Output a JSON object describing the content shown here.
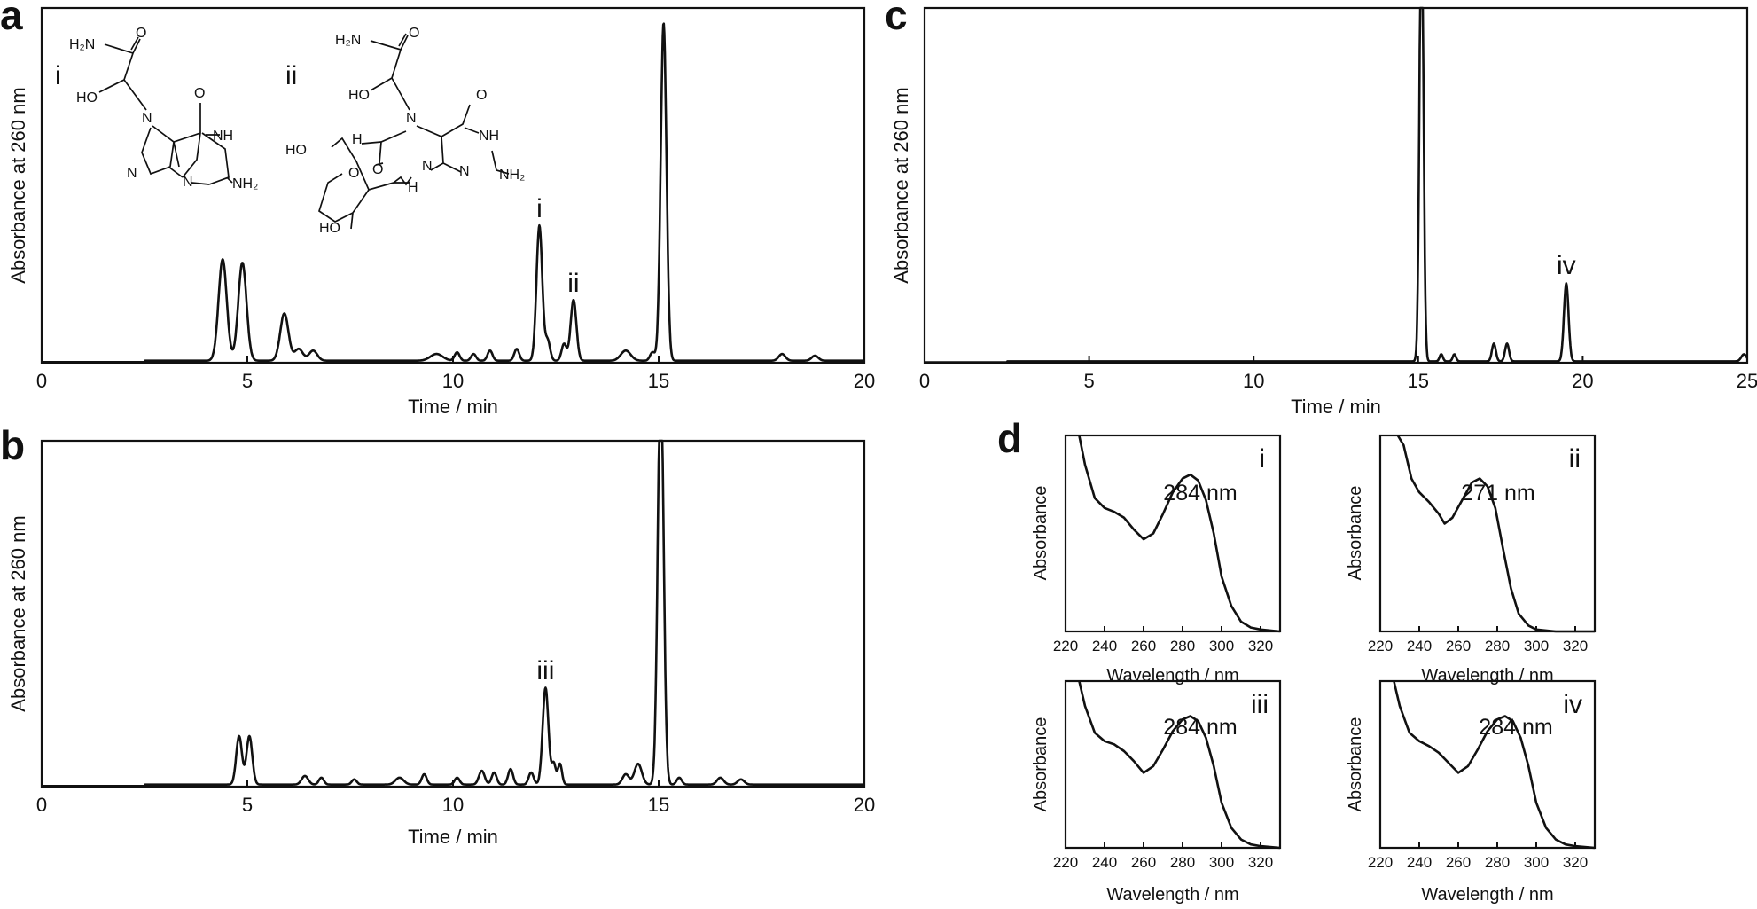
{
  "chart_data": [
    {
      "id": "a",
      "panel_label": "a",
      "type": "line",
      "xlabel": "Time / min",
      "ylabel": "Absorbance at 260 nm",
      "xlim": [
        0,
        20
      ],
      "ylim": [
        0,
        1.05
      ],
      "xticks": [
        0,
        5,
        10,
        15,
        20
      ],
      "baseline": 0.006,
      "structure_labels": [
        "i",
        "ii"
      ],
      "peaks": [
        {
          "x": 4.4,
          "h": 0.3,
          "w": 0.1
        },
        {
          "x": 4.88,
          "h": 0.29,
          "w": 0.1
        },
        {
          "x": 5.9,
          "h": 0.14,
          "w": 0.1
        },
        {
          "x": 6.25,
          "h": 0.035,
          "w": 0.1
        },
        {
          "x": 6.6,
          "h": 0.03,
          "w": 0.1
        },
        {
          "x": 9.6,
          "h": 0.02,
          "w": 0.15
        },
        {
          "x": 10.1,
          "h": 0.025,
          "w": 0.06
        },
        {
          "x": 10.5,
          "h": 0.02,
          "w": 0.06
        },
        {
          "x": 10.9,
          "h": 0.03,
          "w": 0.06
        },
        {
          "x": 11.55,
          "h": 0.035,
          "w": 0.06
        },
        {
          "x": 12.1,
          "h": 0.4,
          "w": 0.07
        },
        {
          "x": 12.3,
          "h": 0.06,
          "w": 0.06
        },
        {
          "x": 12.7,
          "h": 0.05,
          "w": 0.06
        },
        {
          "x": 12.93,
          "h": 0.18,
          "w": 0.07
        },
        {
          "x": 14.2,
          "h": 0.03,
          "w": 0.12
        },
        {
          "x": 14.85,
          "h": 0.025,
          "w": 0.06
        },
        {
          "x": 15.12,
          "h": 1.0,
          "w": 0.07
        },
        {
          "x": 18.0,
          "h": 0.02,
          "w": 0.08
        },
        {
          "x": 18.8,
          "h": 0.015,
          "w": 0.08
        }
      ],
      "annotations": [
        {
          "text": "i",
          "x": 12.1,
          "y": 0.43
        },
        {
          "text": "ii",
          "x": 12.93,
          "y": 0.21
        }
      ]
    },
    {
      "id": "b",
      "panel_label": "b",
      "type": "line",
      "xlabel": "Time / min",
      "ylabel": "Absorbance at 260 nm",
      "xlim": [
        0,
        20
      ],
      "ylim": [
        0,
        1.0
      ],
      "xticks": [
        0,
        5,
        10,
        15,
        20
      ],
      "baseline": 0.006,
      "peaks": [
        {
          "x": 4.8,
          "h": 0.14,
          "w": 0.07
        },
        {
          "x": 5.05,
          "h": 0.14,
          "w": 0.07
        },
        {
          "x": 6.4,
          "h": 0.025,
          "w": 0.08
        },
        {
          "x": 6.8,
          "h": 0.02,
          "w": 0.06
        },
        {
          "x": 7.6,
          "h": 0.015,
          "w": 0.06
        },
        {
          "x": 8.7,
          "h": 0.02,
          "w": 0.1
        },
        {
          "x": 9.3,
          "h": 0.03,
          "w": 0.06
        },
        {
          "x": 10.1,
          "h": 0.02,
          "w": 0.06
        },
        {
          "x": 10.7,
          "h": 0.04,
          "w": 0.07
        },
        {
          "x": 11.0,
          "h": 0.035,
          "w": 0.06
        },
        {
          "x": 11.4,
          "h": 0.045,
          "w": 0.06
        },
        {
          "x": 11.9,
          "h": 0.035,
          "w": 0.06
        },
        {
          "x": 12.25,
          "h": 0.28,
          "w": 0.07
        },
        {
          "x": 12.45,
          "h": 0.06,
          "w": 0.05
        },
        {
          "x": 12.6,
          "h": 0.06,
          "w": 0.05
        },
        {
          "x": 14.2,
          "h": 0.03,
          "w": 0.08
        },
        {
          "x": 14.5,
          "h": 0.06,
          "w": 0.09
        },
        {
          "x": 15.05,
          "h": 1.2,
          "w": 0.07
        },
        {
          "x": 15.5,
          "h": 0.02,
          "w": 0.06
        },
        {
          "x": 16.5,
          "h": 0.02,
          "w": 0.08
        },
        {
          "x": 17.0,
          "h": 0.015,
          "w": 0.08
        }
      ],
      "annotations": [
        {
          "text": "iii",
          "x": 12.25,
          "y": 0.31
        }
      ]
    },
    {
      "id": "c",
      "panel_label": "c",
      "type": "line",
      "xlabel": "Time / min",
      "ylabel": "Absorbance at 260 nm",
      "xlim": [
        0,
        25
      ],
      "ylim": [
        0,
        1.0
      ],
      "xticks": [
        0,
        5,
        10,
        15,
        20,
        25
      ],
      "baseline": 0.004,
      "peaks": [
        {
          "x": 15.1,
          "h": 1.3,
          "w": 0.06
        },
        {
          "x": 15.7,
          "h": 0.02,
          "w": 0.05
        },
        {
          "x": 16.1,
          "h": 0.02,
          "w": 0.05
        },
        {
          "x": 17.3,
          "h": 0.05,
          "w": 0.06
        },
        {
          "x": 17.7,
          "h": 0.05,
          "w": 0.06
        },
        {
          "x": 19.5,
          "h": 0.22,
          "w": 0.07
        },
        {
          "x": 24.9,
          "h": 0.02,
          "w": 0.08
        }
      ],
      "annotations": [
        {
          "text": "iv",
          "x": 19.5,
          "y": 0.25
        }
      ]
    },
    {
      "id": "d-i",
      "panel_label": "d",
      "type": "line",
      "xlabel": "Wavelength / nm",
      "ylabel": "Absorbance",
      "xlim": [
        220,
        330
      ],
      "xticks": [
        220,
        240,
        260,
        280,
        300,
        320
      ],
      "ylim": [
        0,
        1.0
      ],
      "spectrum_id": "i",
      "peak_label": "284 nm",
      "curve": [
        [
          227,
          1.2
        ],
        [
          230,
          0.85
        ],
        [
          235,
          0.68
        ],
        [
          240,
          0.63
        ],
        [
          245,
          0.61
        ],
        [
          250,
          0.58
        ],
        [
          255,
          0.52
        ],
        [
          260,
          0.47
        ],
        [
          265,
          0.5
        ],
        [
          270,
          0.6
        ],
        [
          275,
          0.71
        ],
        [
          280,
          0.78
        ],
        [
          284,
          0.8
        ],
        [
          288,
          0.77
        ],
        [
          292,
          0.67
        ],
        [
          296,
          0.5
        ],
        [
          300,
          0.28
        ],
        [
          305,
          0.13
        ],
        [
          310,
          0.05
        ],
        [
          315,
          0.02
        ],
        [
          320,
          0.01
        ],
        [
          330,
          0.0
        ]
      ]
    },
    {
      "id": "d-ii",
      "panel_label": "",
      "type": "line",
      "xlabel": "Wavelength / nm",
      "ylabel": "Absorbance",
      "xlim": [
        220,
        330
      ],
      "xticks": [
        220,
        240,
        260,
        280,
        300,
        320
      ],
      "ylim": [
        0,
        1.0
      ],
      "spectrum_id": "ii",
      "peak_label": "271 nm",
      "curve": [
        [
          229,
          1.2
        ],
        [
          232,
          0.95
        ],
        [
          236,
          0.78
        ],
        [
          240,
          0.71
        ],
        [
          245,
          0.66
        ],
        [
          250,
          0.6
        ],
        [
          253,
          0.55
        ],
        [
          257,
          0.58
        ],
        [
          262,
          0.67
        ],
        [
          267,
          0.76
        ],
        [
          271,
          0.78
        ],
        [
          275,
          0.74
        ],
        [
          279,
          0.63
        ],
        [
          283,
          0.42
        ],
        [
          287,
          0.22
        ],
        [
          291,
          0.09
        ],
        [
          296,
          0.03
        ],
        [
          300,
          0.01
        ],
        [
          310,
          0.0
        ],
        [
          330,
          0.0
        ]
      ]
    },
    {
      "id": "d-iii",
      "panel_label": "",
      "type": "line",
      "xlabel": "Wavelength / nm",
      "ylabel": "Absorbance",
      "xlim": [
        220,
        330
      ],
      "xticks": [
        220,
        240,
        260,
        280,
        300,
        320
      ],
      "ylim": [
        0,
        1.0
      ],
      "spectrum_id": "iii",
      "peak_label": "284 nm",
      "curve": [
        [
          227,
          1.2
        ],
        [
          230,
          0.85
        ],
        [
          235,
          0.69
        ],
        [
          240,
          0.64
        ],
        [
          245,
          0.62
        ],
        [
          250,
          0.58
        ],
        [
          255,
          0.52
        ],
        [
          260,
          0.45
        ],
        [
          265,
          0.49
        ],
        [
          270,
          0.59
        ],
        [
          275,
          0.7
        ],
        [
          280,
          0.77
        ],
        [
          284,
          0.79
        ],
        [
          288,
          0.76
        ],
        [
          292,
          0.66
        ],
        [
          296,
          0.49
        ],
        [
          300,
          0.27
        ],
        [
          305,
          0.12
        ],
        [
          310,
          0.05
        ],
        [
          315,
          0.02
        ],
        [
          320,
          0.01
        ],
        [
          330,
          0.0
        ]
      ]
    },
    {
      "id": "d-iv",
      "panel_label": "",
      "type": "line",
      "xlabel": "Wavelength / nm",
      "ylabel": "Absorbance",
      "xlim": [
        220,
        330
      ],
      "xticks": [
        220,
        240,
        260,
        280,
        300,
        320
      ],
      "ylim": [
        0,
        1.0
      ],
      "spectrum_id": "iv",
      "peak_label": "284 nm",
      "curve": [
        [
          227,
          1.2
        ],
        [
          230,
          0.85
        ],
        [
          235,
          0.69
        ],
        [
          240,
          0.64
        ],
        [
          245,
          0.61
        ],
        [
          250,
          0.57
        ],
        [
          255,
          0.51
        ],
        [
          260,
          0.45
        ],
        [
          265,
          0.49
        ],
        [
          270,
          0.59
        ],
        [
          275,
          0.7
        ],
        [
          280,
          0.77
        ],
        [
          284,
          0.79
        ],
        [
          288,
          0.76
        ],
        [
          292,
          0.66
        ],
        [
          296,
          0.49
        ],
        [
          300,
          0.27
        ],
        [
          305,
          0.12
        ],
        [
          310,
          0.05
        ],
        [
          315,
          0.02
        ],
        [
          320,
          0.01
        ],
        [
          330,
          0.0
        ]
      ]
    }
  ],
  "structures": {
    "i": {
      "h2n": "H₂N",
      "o": "O",
      "ho": "HO",
      "n": "N",
      "nh": "NH",
      "nh2": "NH₂"
    },
    "ii": {
      "h2n": "H₂N",
      "o": "O",
      "ho": "HO",
      "n": "N",
      "nh": "NH",
      "nh2": "NH₂",
      "h": "H",
      "oh": "HO",
      "ring_o": "O",
      "n_h": "N",
      "h_sub": "H"
    }
  }
}
